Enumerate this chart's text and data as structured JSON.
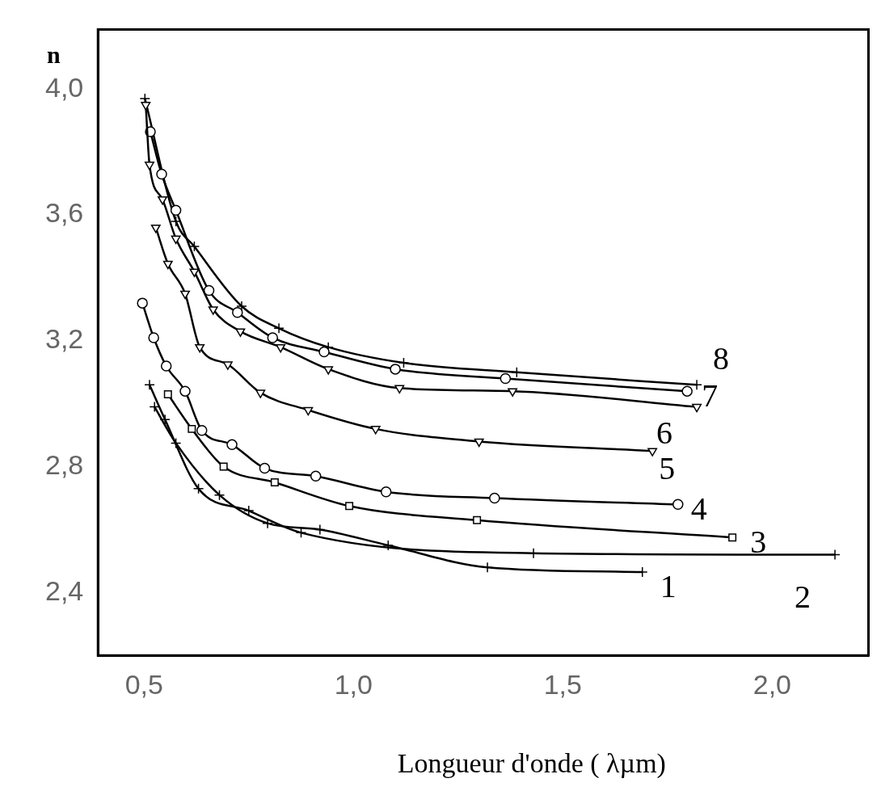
{
  "chart_data": {
    "type": "line",
    "xlabel": "Longueur d'onde ( λµm)",
    "ylabel": "n",
    "xlim": [
      0.39,
      2.23
    ],
    "ylim": [
      2.2,
      4.19
    ],
    "xticks": [
      {
        "value": 0.5,
        "label": "0,5"
      },
      {
        "value": 1,
        "label": "1,0"
      },
      {
        "value": 1.5,
        "label": "1,5"
      },
      {
        "value": 2,
        "label": "2,0"
      }
    ],
    "yticks": [
      {
        "value": 2.4,
        "label": "2,4"
      },
      {
        "value": 2.8,
        "label": "2,8"
      },
      {
        "value": 3.2,
        "label": "3,2"
      },
      {
        "value": 3.6,
        "label": "3,6"
      },
      {
        "value": 4,
        "label": "4,0"
      }
    ],
    "grid": false,
    "legend": false,
    "line_style": "solid",
    "series": [
      {
        "name": "1",
        "color": "#000000",
        "marker": "cross",
        "x": [
          0.525,
          0.576,
          0.68,
          0.795,
          0.92,
          1.083,
          1.32,
          1.69
        ],
        "values": [
          2.99,
          2.875,
          2.71,
          2.62,
          2.6,
          2.55,
          2.48,
          2.465
        ]
      },
      {
        "name": "2",
        "color": "#000000",
        "marker": "cross",
        "x": [
          0.513,
          0.55,
          0.63,
          0.75,
          0.875,
          1.43,
          2.15
        ],
        "values": [
          3.06,
          2.95,
          2.73,
          2.66,
          2.59,
          2.525,
          2.52
        ]
      },
      {
        "name": "3",
        "color": "#000000",
        "marker": "square",
        "x": [
          0.557,
          0.614,
          0.69,
          0.812,
          0.99,
          1.295,
          1.905
        ],
        "values": [
          3.03,
          2.92,
          2.8,
          2.75,
          2.675,
          2.63,
          2.575
        ]
      },
      {
        "name": "4",
        "color": "#000000",
        "marker": "circle",
        "x": [
          0.496,
          0.523,
          0.553,
          0.598,
          0.638,
          0.71,
          0.788,
          0.91,
          1.078,
          1.337,
          1.775
        ],
        "values": [
          3.32,
          3.21,
          3.12,
          3.04,
          2.915,
          2.87,
          2.795,
          2.77,
          2.72,
          2.7,
          2.68
        ]
      },
      {
        "name": "5",
        "color": "#000000",
        "marker": "triangle",
        "x": [
          0.528,
          0.557,
          0.598,
          0.633,
          0.7,
          0.778,
          0.892,
          1.053,
          1.3,
          1.714
        ],
        "values": [
          3.56,
          3.445,
          3.35,
          3.18,
          3.125,
          3.035,
          2.98,
          2.92,
          2.88,
          2.85
        ]
      },
      {
        "name": "6",
        "color": "#000000",
        "marker": "triangle",
        "x": [
          0.504,
          0.513,
          0.544,
          0.576,
          0.62,
          0.665,
          0.73,
          0.826,
          0.94,
          1.11,
          1.38,
          1.82
        ],
        "values": [
          3.95,
          3.76,
          3.65,
          3.525,
          3.42,
          3.3,
          3.23,
          3.18,
          3.11,
          3.05,
          3.04,
          2.99
        ]
      },
      {
        "name": "7",
        "color": "#000000",
        "marker": "circle",
        "x": [
          0.515,
          0.542,
          0.576,
          0.655,
          0.723,
          0.807,
          0.93,
          1.1,
          1.363,
          1.797
        ],
        "values": [
          3.865,
          3.73,
          3.615,
          3.36,
          3.29,
          3.21,
          3.165,
          3.11,
          3.08,
          3.04
        ]
      },
      {
        "name": "8",
        "color": "#000000",
        "marker": "cross",
        "x": [
          0.502,
          0.576,
          0.62,
          0.733,
          0.822,
          0.94,
          1.12,
          1.39,
          1.82
        ],
        "values": [
          3.97,
          3.58,
          3.5,
          3.31,
          3.24,
          3.18,
          3.13,
          3.1,
          3.06
        ]
      }
    ]
  }
}
